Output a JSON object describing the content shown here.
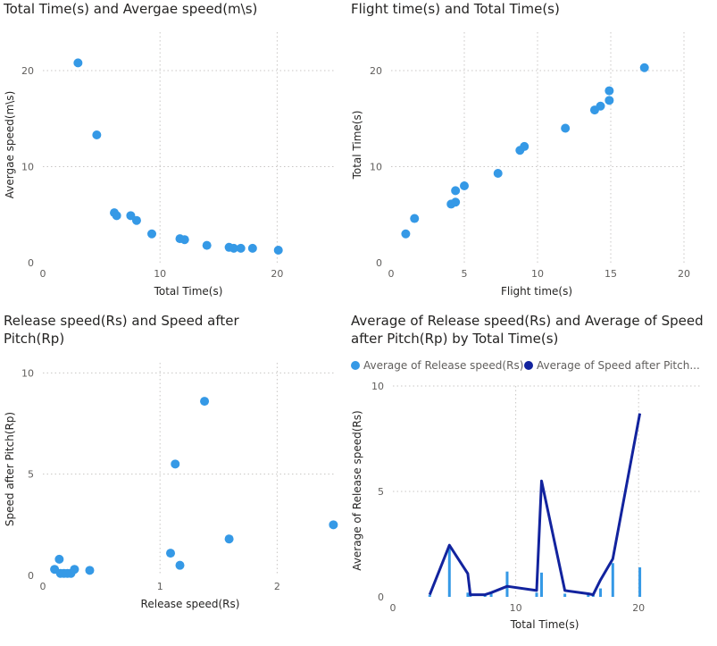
{
  "colors": {
    "series1": "#3599e6",
    "series2": "#12239e",
    "grid": "#c8c6c4"
  },
  "chart_data": [
    {
      "type": "scatter",
      "title_lines": [
        "Total Time(s) and Avergae speed(m\\s)"
      ],
      "xlabel": "Total Time(s)",
      "ylabel": "Avergae speed(m\\s)",
      "xlim": [
        0,
        25
      ],
      "ylim": [
        0,
        24
      ],
      "xticks": [
        0,
        10,
        20
      ],
      "yticks": [
        0,
        10,
        20
      ],
      "grid": true,
      "points": [
        [
          3.0,
          20.8
        ],
        [
          4.6,
          13.3
        ],
        [
          6.1,
          5.2
        ],
        [
          6.3,
          4.9
        ],
        [
          7.5,
          4.9
        ],
        [
          8.0,
          4.4
        ],
        [
          9.3,
          3.0
        ],
        [
          11.7,
          2.5
        ],
        [
          12.1,
          2.4
        ],
        [
          14.0,
          1.8
        ],
        [
          15.9,
          1.6
        ],
        [
          16.3,
          1.5
        ],
        [
          16.9,
          1.5
        ],
        [
          17.9,
          1.5
        ],
        [
          20.1,
          1.3
        ]
      ]
    },
    {
      "type": "scatter",
      "title_lines": [
        "Flight time(s) and Total Time(s)"
      ],
      "xlabel": "Flight time(s)",
      "ylabel": "Total Time(s)",
      "xlim": [
        0,
        20
      ],
      "ylim": [
        0,
        24
      ],
      "xticks": [
        0,
        5,
        10,
        15,
        20
      ],
      "yticks": [
        0,
        10,
        20
      ],
      "grid": true,
      "points": [
        [
          1.0,
          3.0
        ],
        [
          1.6,
          4.6
        ],
        [
          4.1,
          6.1
        ],
        [
          4.4,
          6.3
        ],
        [
          4.4,
          7.5
        ],
        [
          5.0,
          8.0
        ],
        [
          7.3,
          9.3
        ],
        [
          8.8,
          11.7
        ],
        [
          9.1,
          12.1
        ],
        [
          11.9,
          14.0
        ],
        [
          13.9,
          15.9
        ],
        [
          14.3,
          16.3
        ],
        [
          14.9,
          16.9
        ],
        [
          14.9,
          17.9
        ],
        [
          17.3,
          20.3
        ]
      ]
    },
    {
      "type": "scatter",
      "title_lines": [
        "Release speed(Rs) and Speed after",
        "Pitch(Rp)"
      ],
      "xlabel": "Release speed(Rs)",
      "ylabel": "Speed after Pitch(Rp)",
      "xlim": [
        0,
        2.5
      ],
      "ylim": [
        0,
        10.5
      ],
      "xticks": [
        0,
        1,
        2
      ],
      "yticks": [
        0,
        5,
        10
      ],
      "grid": true,
      "points": [
        [
          0.1,
          0.3
        ],
        [
          0.14,
          0.8
        ],
        [
          0.15,
          0.1
        ],
        [
          0.18,
          0.1
        ],
        [
          0.21,
          0.1
        ],
        [
          0.24,
          0.1
        ],
        [
          0.27,
          0.3
        ],
        [
          0.4,
          0.25
        ],
        [
          1.09,
          1.1
        ],
        [
          1.13,
          5.5
        ],
        [
          1.17,
          0.5
        ],
        [
          1.38,
          8.6
        ],
        [
          1.59,
          1.8
        ],
        [
          2.48,
          2.5
        ]
      ]
    },
    {
      "type": "bar-line combo",
      "title_lines": [
        "Average of Release speed(Rs) and Average of Speed",
        "after Pitch(Rp) by Total Time(s)"
      ],
      "xlabel": "Total Time(s)",
      "ylabel": "Average of Release speed(Rs)",
      "xlim": [
        0,
        25
      ],
      "ylim": [
        0,
        10
      ],
      "xticks": [
        0,
        10,
        20
      ],
      "yticks": [
        0,
        5,
        10
      ],
      "grid": true,
      "legend_position": "top-left",
      "series": [
        {
          "name": "Average of Release speed(Rs)",
          "kind": "bar",
          "points": [
            [
              3.0,
              0.1
            ],
            [
              4.6,
              2.45
            ],
            [
              6.1,
              0.2
            ],
            [
              6.3,
              0.2
            ],
            [
              7.5,
              0.15
            ],
            [
              8.0,
              0.25
            ],
            [
              9.3,
              1.2
            ],
            [
              11.7,
              0.2
            ],
            [
              12.1,
              1.15
            ],
            [
              14.0,
              0.15
            ],
            [
              15.9,
              0.2
            ],
            [
              16.3,
              0.15
            ],
            [
              16.9,
              0.4
            ],
            [
              17.9,
              1.6
            ],
            [
              20.1,
              1.4
            ]
          ]
        },
        {
          "name": "Average of Speed after Pitch...",
          "kind": "line",
          "points": [
            [
              3.0,
              0.1
            ],
            [
              4.6,
              2.45
            ],
            [
              6.1,
              1.1
            ],
            [
              6.3,
              0.1
            ],
            [
              7.5,
              0.1
            ],
            [
              8.0,
              0.2
            ],
            [
              9.3,
              0.5
            ],
            [
              11.7,
              0.3
            ],
            [
              12.1,
              5.5
            ],
            [
              14.0,
              0.3
            ],
            [
              15.9,
              0.15
            ],
            [
              16.3,
              0.1
            ],
            [
              16.9,
              0.8
            ],
            [
              17.9,
              1.8
            ],
            [
              20.1,
              8.7
            ]
          ]
        }
      ]
    }
  ]
}
